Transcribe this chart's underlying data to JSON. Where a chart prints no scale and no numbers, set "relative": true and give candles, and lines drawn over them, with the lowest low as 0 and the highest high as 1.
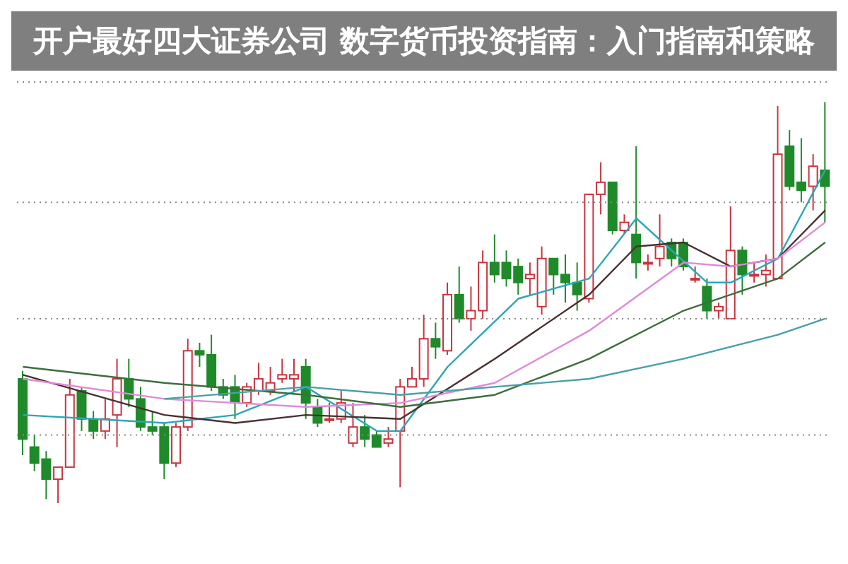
{
  "chart_data": {
    "type": "candlestick",
    "title": "开户最好四大证券公司 数字货币投资指南：入门指南和策略",
    "relative": true,
    "tick_labels": false,
    "ref_lines": [
      {
        "axis": "y",
        "value": 1.05,
        "color": "#888888",
        "line_style": "dotted"
      },
      {
        "axis": "y",
        "value": 0.75,
        "color": "#888888",
        "line_style": "dotted"
      },
      {
        "axis": "y",
        "value": 0.46,
        "color": "#888888",
        "line_style": "dotted"
      },
      {
        "axis": "y",
        "value": 0.17,
        "color": "#888888",
        "line_style": "dotted"
      }
    ],
    "categories": [
      null,
      null,
      null,
      null,
      null,
      null,
      null,
      null,
      null,
      null,
      null,
      null,
      null,
      null,
      null,
      null,
      null,
      null,
      null,
      null,
      null,
      null,
      null,
      null,
      null,
      null,
      null,
      null,
      null,
      null,
      null,
      null,
      null,
      null,
      null,
      null,
      null,
      null,
      null,
      null,
      null,
      null,
      null,
      null,
      null,
      null,
      null,
      null,
      null,
      null,
      null,
      null,
      null,
      null,
      null,
      null,
      null,
      null,
      null,
      null,
      null,
      null,
      null,
      null,
      null,
      null,
      null,
      null,
      null
    ],
    "ohlc": [
      [
        0.31,
        0.33,
        0.12,
        0.16
      ],
      [
        0.14,
        0.17,
        0.08,
        0.1
      ],
      [
        0.11,
        0.13,
        0.01,
        0.06
      ],
      [
        0.06,
        0.09,
        0,
        0.09
      ],
      [
        0.09,
        0.31,
        0.09,
        0.27
      ],
      [
        0.28,
        0.29,
        0.18,
        0.21
      ],
      [
        0.21,
        0.23,
        0.16,
        0.18
      ],
      [
        0.18,
        0.26,
        0.16,
        0.21
      ],
      [
        0.22,
        0.36,
        0.14,
        0.31
      ],
      [
        0.31,
        0.36,
        0.24,
        0.26
      ],
      [
        0.26,
        0.29,
        0.18,
        0.19
      ],
      [
        0.19,
        0.23,
        0.17,
        0.18
      ],
      [
        0.19,
        0.2,
        0.06,
        0.1
      ],
      [
        0.1,
        0.2,
        0.09,
        0.19
      ],
      [
        0.19,
        0.41,
        0.18,
        0.38
      ],
      [
        0.38,
        0.4,
        0.34,
        0.37
      ],
      [
        0.37,
        0.42,
        0.28,
        0.29
      ],
      [
        0.29,
        0.31,
        0.26,
        0.27
      ],
      [
        0.29,
        0.32,
        0.21,
        0.25
      ],
      [
        0.25,
        0.3,
        0.24,
        0.29
      ],
      [
        0.28,
        0.35,
        0.27,
        0.31
      ],
      [
        0.28,
        0.34,
        0.27,
        0.3
      ],
      [
        0.31,
        0.36,
        0.3,
        0.32
      ],
      [
        0.31,
        0.36,
        0.28,
        0.32
      ],
      [
        0.34,
        0.36,
        0.21,
        0.25
      ],
      [
        0.24,
        0.26,
        0.19,
        0.2
      ],
      [
        0.21,
        0.25,
        0.2,
        0.21
      ],
      [
        0.21,
        0.28,
        0.2,
        0.25
      ],
      [
        0.15,
        0.25,
        0.14,
        0.19
      ],
      [
        0.19,
        0.22,
        0.14,
        0.16
      ],
      [
        0.17,
        0.18,
        0.14,
        0.14
      ],
      [
        0.15,
        0.19,
        0.14,
        0.16
      ],
      [
        0.18,
        0.31,
        0.04,
        0.29
      ],
      [
        0.29,
        0.34,
        0.29,
        0.31
      ],
      [
        0.31,
        0.47,
        0.29,
        0.41
      ],
      [
        0.41,
        0.45,
        0.36,
        0.39
      ],
      [
        0.38,
        0.55,
        0.37,
        0.52
      ],
      [
        0.52,
        0.59,
        0.45,
        0.46
      ],
      [
        0.46,
        0.54,
        0.43,
        0.48
      ],
      [
        0.48,
        0.63,
        0.46,
        0.6
      ],
      [
        0.6,
        0.67,
        0.55,
        0.57
      ],
      [
        0.6,
        0.63,
        0.54,
        0.56
      ],
      [
        0.59,
        0.61,
        0.52,
        0.55
      ],
      [
        0.56,
        0.6,
        0.52,
        0.57
      ],
      [
        0.49,
        0.64,
        0.47,
        0.61
      ],
      [
        0.61,
        0.61,
        0.52,
        0.57
      ],
      [
        0.57,
        0.62,
        0.5,
        0.55
      ],
      [
        0.55,
        0.6,
        0.48,
        0.52
      ],
      [
        0.51,
        0.77,
        0.5,
        0.77
      ],
      [
        0.77,
        0.85,
        0.72,
        0.8
      ],
      [
        0.8,
        0.8,
        0.67,
        0.68
      ],
      [
        0.68,
        0.72,
        0.67,
        0.7
      ],
      [
        0.67,
        0.89,
        0.56,
        0.6
      ],
      [
        0.6,
        0.62,
        0.58,
        0.6
      ],
      [
        0.61,
        0.72,
        0.59,
        0.64
      ],
      [
        0.65,
        0.66,
        0.59,
        0.61
      ],
      [
        0.65,
        0.66,
        0.58,
        0.59
      ],
      [
        0.56,
        0.59,
        0.55,
        0.56
      ],
      [
        0.54,
        0.56,
        0.46,
        0.48
      ],
      [
        0.48,
        0.5,
        0.46,
        0.49
      ],
      [
        0.46,
        0.74,
        0.46,
        0.63
      ],
      [
        0.63,
        0.64,
        0.52,
        0.57
      ],
      [
        0.57,
        0.6,
        0.55,
        0.57
      ],
      [
        0.57,
        0.62,
        0.54,
        0.58
      ],
      [
        0.56,
        0.99,
        0.56,
        0.87
      ],
      [
        0.89,
        0.93,
        0.78,
        0.79
      ],
      [
        0.8,
        0.91,
        0.75,
        0.78
      ],
      [
        0.79,
        0.87,
        0.73,
        0.84
      ],
      [
        0.83,
        1.0,
        0.7,
        0.79
      ]
    ],
    "series": [
      {
        "type": "line",
        "color": "#2aa6b8",
        "values": [
          0.22,
          null,
          null,
          null,
          null,
          null,
          0.21,
          null,
          null,
          null,
          null,
          null,
          0.2,
          null,
          null,
          null,
          null,
          null,
          0.22,
          null,
          null,
          null,
          null,
          null,
          0.29,
          null,
          null,
          null,
          null,
          null,
          0.18,
          null,
          0.18,
          null,
          null,
          null,
          0.34,
          null,
          null,
          null,
          null,
          null,
          0.51,
          null,
          null,
          null,
          null,
          null,
          0.56,
          null,
          null,
          null,
          0.71,
          null,
          null,
          null,
          null,
          null,
          0.55,
          null,
          0.55,
          null,
          null,
          null,
          0.61,
          null,
          null,
          null,
          0.83
        ]
      },
      {
        "type": "line",
        "color": "#4a3030",
        "values": [
          0.32,
          null,
          null,
          null,
          null,
          null,
          null,
          null,
          null,
          null,
          null,
          null,
          0.22,
          null,
          null,
          null,
          null,
          null,
          0.2,
          null,
          null,
          null,
          null,
          null,
          0.22,
          null,
          null,
          null,
          null,
          null,
          null,
          null,
          0.21,
          null,
          null,
          null,
          null,
          null,
          null,
          null,
          0.36,
          null,
          null,
          null,
          null,
          null,
          null,
          null,
          0.52,
          null,
          null,
          null,
          0.64,
          null,
          null,
          null,
          0.65,
          null,
          null,
          null,
          0.59,
          null,
          null,
          null,
          0.61,
          null,
          null,
          null,
          0.73
        ]
      },
      {
        "type": "line",
        "color": "#e08ad8",
        "values": [
          0.31,
          null,
          null,
          null,
          null,
          null,
          null,
          null,
          null,
          null,
          null,
          null,
          0.26,
          null,
          null,
          null,
          null,
          null,
          null,
          null,
          null,
          null,
          null,
          null,
          0.24,
          null,
          null,
          null,
          null,
          null,
          null,
          null,
          0.25,
          null,
          null,
          null,
          null,
          null,
          null,
          null,
          0.3,
          null,
          null,
          null,
          null,
          null,
          null,
          null,
          0.43,
          null,
          null,
          null,
          null,
          null,
          null,
          null,
          0.6,
          null,
          null,
          null,
          0.59,
          null,
          null,
          null,
          0.61,
          null,
          null,
          null,
          0.7
        ]
      },
      {
        "type": "line",
        "color": "#3c6e3c",
        "values": [
          0.34,
          null,
          null,
          null,
          null,
          null,
          null,
          null,
          null,
          null,
          null,
          null,
          0.3,
          null,
          null,
          null,
          null,
          null,
          null,
          null,
          null,
          null,
          null,
          null,
          0.27,
          null,
          null,
          null,
          null,
          null,
          null,
          null,
          0.24,
          null,
          null,
          null,
          null,
          null,
          null,
          null,
          0.27,
          null,
          null,
          null,
          null,
          null,
          null,
          null,
          0.36,
          null,
          null,
          null,
          null,
          null,
          null,
          null,
          0.48,
          null,
          null,
          null,
          null,
          null,
          null,
          null,
          0.56,
          null,
          null,
          null,
          0.65
        ]
      },
      {
        "type": "line",
        "color": "#4aa0a8",
        "values": [
          null,
          null,
          null,
          null,
          null,
          null,
          null,
          null,
          null,
          null,
          null,
          null,
          0.26,
          null,
          null,
          null,
          null,
          null,
          null,
          null,
          null,
          null,
          null,
          null,
          0.29,
          null,
          null,
          null,
          null,
          null,
          null,
          null,
          0.27,
          null,
          null,
          null,
          null,
          null,
          null,
          null,
          0.29,
          null,
          null,
          null,
          null,
          null,
          null,
          null,
          0.31,
          null,
          null,
          null,
          null,
          null,
          null,
          null,
          0.36,
          null,
          null,
          null,
          null,
          null,
          null,
          null,
          0.42,
          null,
          null,
          null,
          0.46
        ]
      }
    ]
  }
}
